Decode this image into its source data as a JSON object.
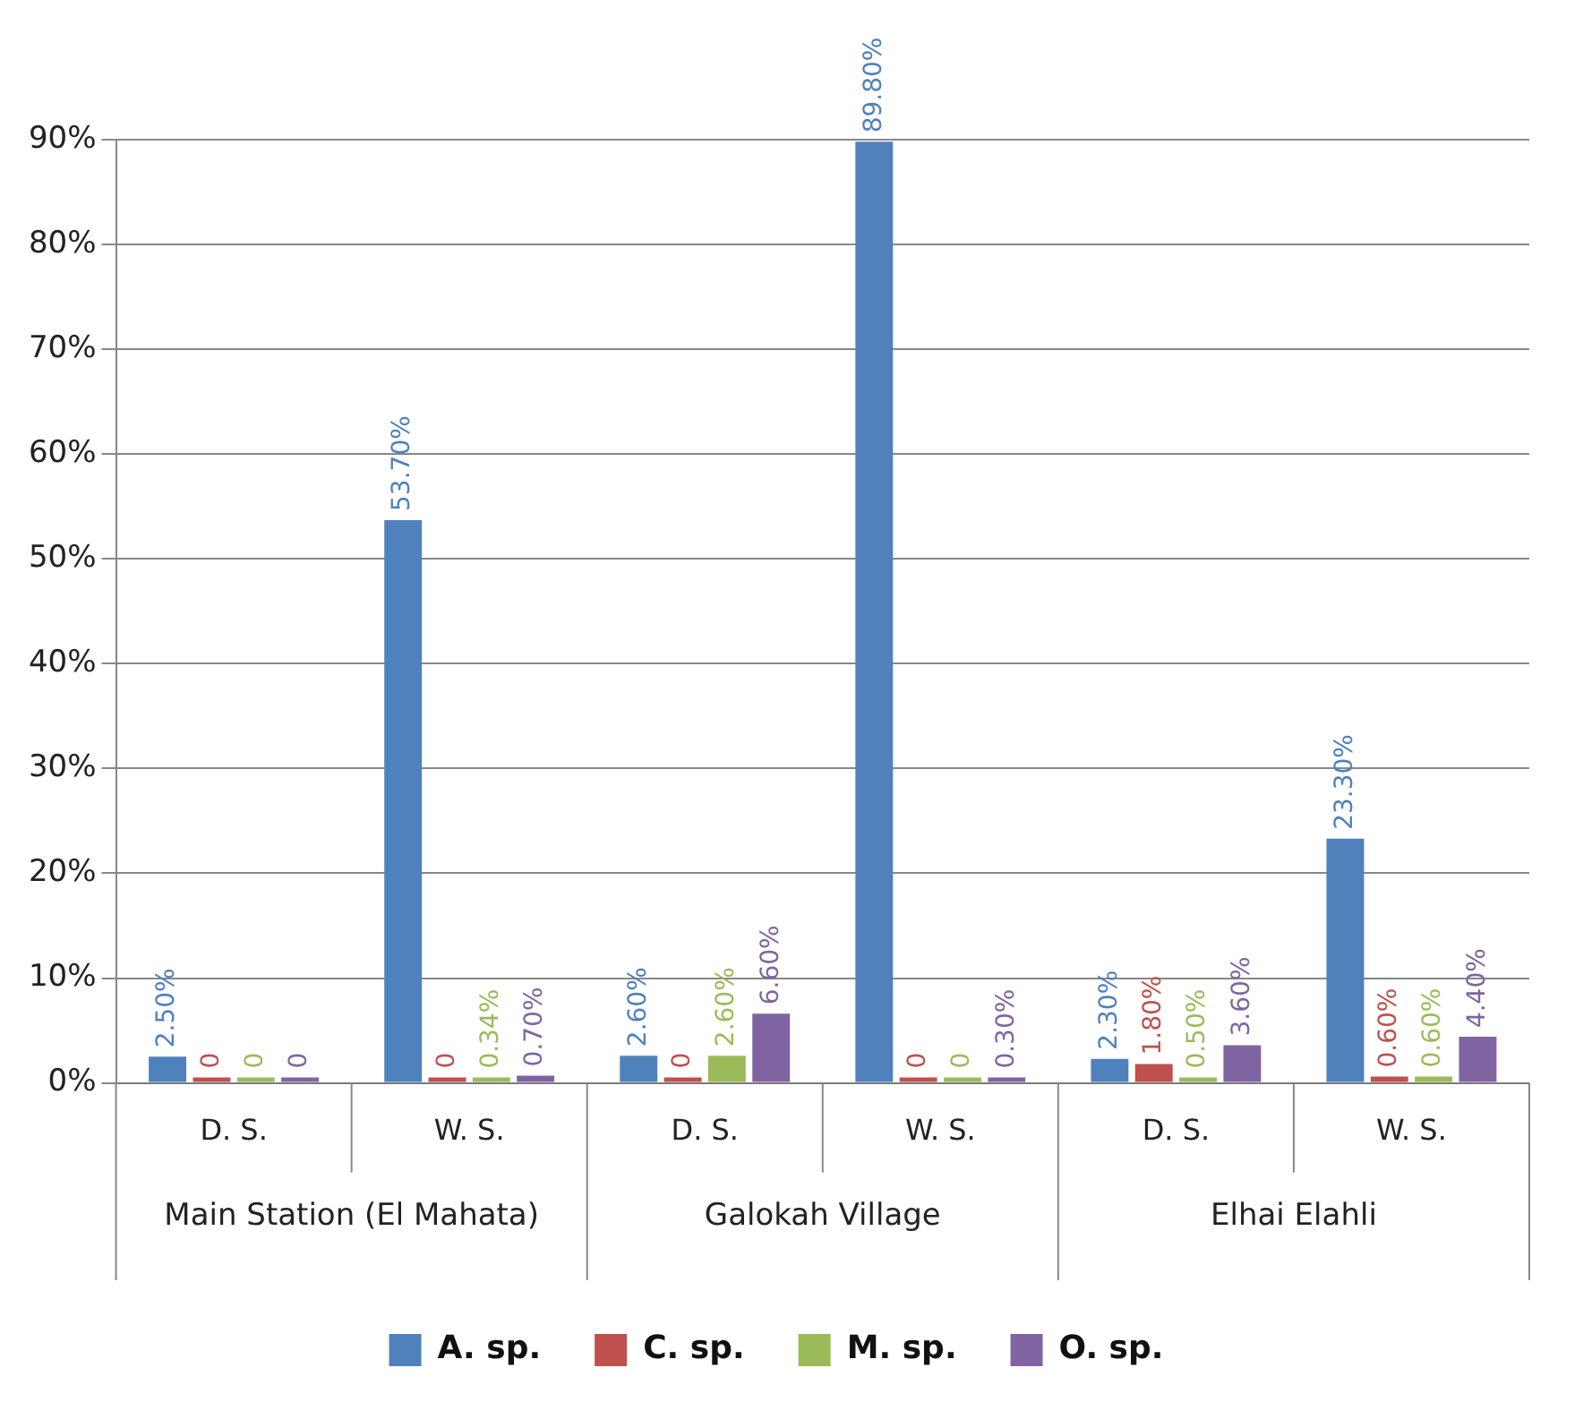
{
  "chart_data": {
    "type": "bar",
    "categories": [
      "D. S.",
      "W. S.",
      "D. S.",
      "W. S.",
      "D. S.",
      "W. S."
    ],
    "annotations": [
      "Main Station (El Mahata)",
      "Galokah Village",
      "Elhai Elahli"
    ],
    "series": [
      {
        "name": "A. sp.",
        "color": "#4f81bd",
        "values": [
          2.5,
          53.7,
          2.6,
          89.8,
          2.3,
          23.3
        ],
        "value_labels": [
          "2.50%",
          "53.70%",
          "2.60%",
          "89.80%",
          "2.30%",
          "23.30%"
        ]
      },
      {
        "name": "C. sp.",
        "color": "#c0504d",
        "values": [
          0,
          0,
          0,
          0,
          1.8,
          0.6
        ],
        "value_labels": [
          "0",
          "0",
          "0",
          "0",
          "1.80%",
          "0.60%"
        ]
      },
      {
        "name": "M. sp.",
        "color": "#9bbb59",
        "values": [
          0,
          0.34,
          2.6,
          0,
          0.5,
          0.6
        ],
        "value_labels": [
          "0",
          "0.34%",
          "2.60%",
          "0",
          "0.50%",
          "0.60%"
        ]
      },
      {
        "name": "O. sp.",
        "color": "#8064a2",
        "values": [
          0,
          0.7,
          6.6,
          0.3,
          3.6,
          4.4
        ],
        "value_labels": [
          "0",
          "0.70%",
          "6.60%",
          "0.30%",
          "3.60%",
          "4.40%"
        ]
      }
    ],
    "ylim": [
      0,
      90
    ],
    "yticks": [
      {
        "value": 0,
        "label": "0%"
      },
      {
        "value": 10,
        "label": "10%"
      },
      {
        "value": 20,
        "label": "20%"
      },
      {
        "value": 30,
        "label": "30%"
      },
      {
        "value": 40,
        "label": "40%"
      },
      {
        "value": 50,
        "label": "50%"
      },
      {
        "value": 60,
        "label": "60%"
      },
      {
        "value": 70,
        "label": "70%"
      },
      {
        "value": 80,
        "label": "80%"
      },
      {
        "value": 90,
        "label": "90%"
      }
    ],
    "grid": "y",
    "legend": "bottom"
  }
}
